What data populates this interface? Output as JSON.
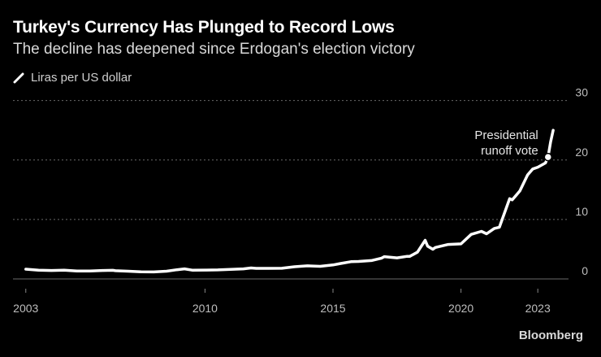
{
  "chart_data": {
    "type": "line",
    "title": "Turkey's Currency Has Plunged to Record Lows",
    "subtitle": "The decline has deepened since Erdogan's election victory",
    "series": [
      {
        "name": "Liras per US dollar",
        "x": [
          2003.0,
          2003.5,
          2004.0,
          2004.5,
          2005.0,
          2005.5,
          2006.0,
          2006.4,
          2006.5,
          2007.0,
          2007.5,
          2008.0,
          2008.5,
          2008.9,
          2009.2,
          2009.5,
          2010.0,
          2010.5,
          2011.0,
          2011.5,
          2011.8,
          2012.0,
          2012.5,
          2013.0,
          2013.5,
          2014.0,
          2014.5,
          2015.0,
          2015.3,
          2015.7,
          2016.0,
          2016.5,
          2016.9,
          2017.0,
          2017.5,
          2017.9,
          2018.0,
          2018.3,
          2018.6,
          2018.7,
          2018.9,
          2019.0,
          2019.5,
          2020.0,
          2020.4,
          2020.8,
          2021.0,
          2021.3,
          2021.5,
          2021.9,
          2022.0,
          2022.3,
          2022.6,
          2022.8,
          2023.0,
          2023.3,
          2023.4,
          2023.5,
          2023.6
        ],
        "y": [
          1.65,
          1.48,
          1.42,
          1.48,
          1.35,
          1.34,
          1.42,
          1.45,
          1.38,
          1.3,
          1.2,
          1.18,
          1.3,
          1.55,
          1.7,
          1.48,
          1.5,
          1.52,
          1.6,
          1.7,
          1.85,
          1.78,
          1.78,
          1.8,
          2.05,
          2.2,
          2.12,
          2.35,
          2.6,
          2.9,
          2.95,
          3.1,
          3.5,
          3.75,
          3.55,
          3.8,
          3.8,
          4.5,
          6.5,
          5.5,
          5.0,
          5.3,
          5.8,
          5.9,
          7.5,
          8.0,
          7.6,
          8.5,
          8.7,
          13.5,
          13.3,
          14.8,
          17.5,
          18.5,
          18.8,
          19.5,
          20.5,
          23.0,
          25.0
        ]
      }
    ],
    "annotation": {
      "text": [
        "Presidential",
        "runoff vote"
      ],
      "x": 2023.4,
      "y": 20.5
    },
    "xticks": [
      2003,
      2010,
      2015,
      2020,
      2023
    ],
    "yticks": [
      0,
      10,
      20,
      30
    ],
    "xlim": [
      2002.5,
      2024.2
    ],
    "ylim": [
      -1.5,
      30.5
    ],
    "grid": true,
    "legend": "top-left",
    "line_color": "#ffffff"
  },
  "source": "Bloomberg"
}
